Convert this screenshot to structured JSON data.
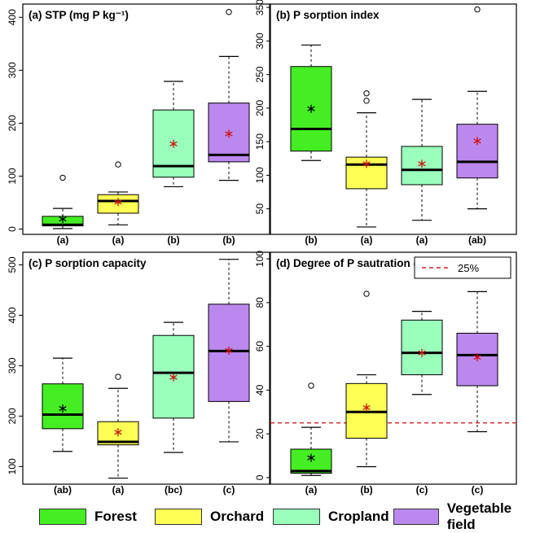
{
  "legend": [
    {
      "label": "Forest",
      "color": "#44ee22"
    },
    {
      "label": "Orchard",
      "color": "#ffff55"
    },
    {
      "label": "Cropland",
      "color": "#99ffbb"
    },
    {
      "label": "Vegetable field",
      "color": "#bb88ee"
    }
  ],
  "chart_data": [
    {
      "type": "boxplot",
      "title": "(a) STP (mg P kg⁻¹)",
      "ylim": [
        -10,
        425
      ],
      "yticks": [
        0,
        100,
        200,
        300,
        400
      ],
      "categories": [
        "Forest",
        "Orchard",
        "Cropland",
        "Vegetable field"
      ],
      "group_labels": [
        "(a)",
        "(a)",
        "(b)",
        "(b)"
      ],
      "boxes": [
        {
          "whisker_low": 1,
          "q1": 6,
          "median": 8,
          "q3": 24,
          "whisker_high": 39,
          "mean": 19,
          "outliers": [
            97
          ]
        },
        {
          "whisker_low": 8,
          "q1": 30,
          "median": 53,
          "q3": 65,
          "whisker_high": 70,
          "mean": 51,
          "outliers": [
            122
          ]
        },
        {
          "whisker_low": 80,
          "q1": 98,
          "median": 119,
          "q3": 225,
          "whisker_high": 279,
          "mean": 161,
          "outliers": []
        },
        {
          "whisker_low": 92,
          "q1": 127,
          "median": 140,
          "q3": 238,
          "whisker_high": 326,
          "mean": 180,
          "outliers": [
            410
          ]
        }
      ]
    },
    {
      "type": "boxplot",
      "title": "(b) P sorption index",
      "ylim": [
        12,
        355
      ],
      "yticks": [
        50,
        100,
        150,
        200,
        250,
        300,
        350
      ],
      "categories": [
        "Forest",
        "Orchard",
        "Cropland",
        "Vegetable field"
      ],
      "group_labels": [
        "(b)",
        "(a)",
        "(a)",
        "(ab)"
      ],
      "boxes": [
        {
          "whisker_low": 122,
          "q1": 136,
          "median": 169,
          "q3": 262,
          "whisker_high": 294,
          "mean": 199,
          "outliers": []
        },
        {
          "whisker_low": 23,
          "q1": 80,
          "median": 116,
          "q3": 127,
          "whisker_high": 193,
          "mean": 117,
          "outliers": [
            211,
            222
          ]
        },
        {
          "whisker_low": 33,
          "q1": 86,
          "median": 108,
          "q3": 143,
          "whisker_high": 213,
          "mean": 117,
          "outliers": []
        },
        {
          "whisker_low": 50,
          "q1": 96,
          "median": 120,
          "q3": 176,
          "whisker_high": 225,
          "mean": 151,
          "outliers": [
            347
          ]
        }
      ]
    },
    {
      "type": "boxplot",
      "title": "(c) P sorption capacity",
      "ylim": [
        65,
        525
      ],
      "yticks": [
        100,
        200,
        300,
        400,
        500
      ],
      "categories": [
        "Forest",
        "Orchard",
        "Cropland",
        "Vegetable field"
      ],
      "group_labels": [
        "(ab)",
        "(a)",
        "(bc)",
        "(c)"
      ],
      "boxes": [
        {
          "whisker_low": 130,
          "q1": 175,
          "median": 203,
          "q3": 264,
          "whisker_high": 315,
          "mean": 215,
          "outliers": []
        },
        {
          "whisker_low": 77,
          "q1": 143,
          "median": 149,
          "q3": 189,
          "whisker_high": 255,
          "mean": 168,
          "outliers": [
            278
          ]
        },
        {
          "whisker_low": 128,
          "q1": 196,
          "median": 286,
          "q3": 360,
          "whisker_high": 386,
          "mean": 277,
          "outliers": []
        },
        {
          "whisker_low": 149,
          "q1": 229,
          "median": 329,
          "q3": 422,
          "whisker_high": 511,
          "mean": 330,
          "outliers": []
        }
      ]
    },
    {
      "type": "boxplot",
      "title": "(d) Degree of P sautration (%)",
      "ylim": [
        -3,
        103
      ],
      "yticks": [
        0,
        20,
        40,
        60,
        80,
        100
      ],
      "categories": [
        "Forest",
        "Orchard",
        "Cropland",
        "Vegetable field"
      ],
      "group_labels": [
        "(a)",
        "(b)",
        "(c)",
        "(c)"
      ],
      "reference_line": {
        "value": 25,
        "label": "25%",
        "color": "#cc2222",
        "style": "dashed"
      },
      "boxes": [
        {
          "whisker_low": 1,
          "q1": 2,
          "median": 3,
          "q3": 13,
          "whisker_high": 23,
          "mean": 9,
          "outliers": [
            42
          ]
        },
        {
          "whisker_low": 5,
          "q1": 18,
          "median": 30,
          "q3": 43,
          "whisker_high": 47,
          "mean": 32,
          "outliers": [
            84
          ]
        },
        {
          "whisker_low": 38,
          "q1": 47,
          "median": 57,
          "q3": 72,
          "whisker_high": 76,
          "mean": 57,
          "outliers": []
        },
        {
          "whisker_low": 21,
          "q1": 42,
          "median": 56,
          "q3": 66,
          "whisker_high": 85,
          "mean": 55,
          "outliers": []
        }
      ]
    }
  ]
}
